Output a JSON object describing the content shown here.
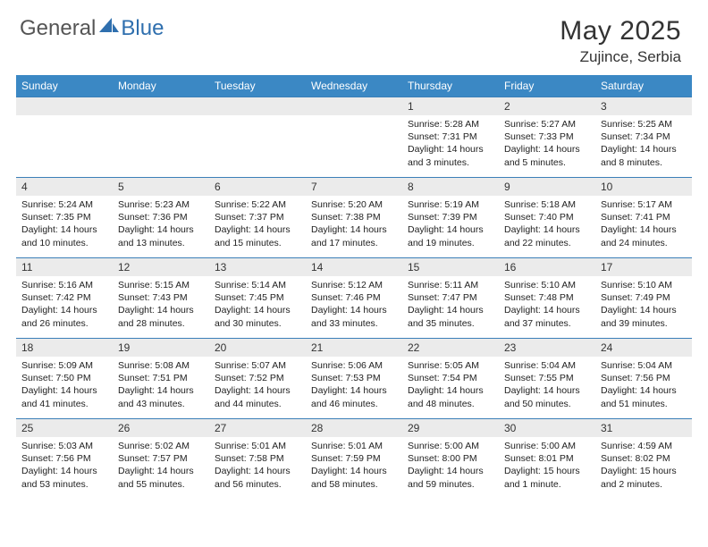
{
  "logo": {
    "general": "General",
    "blue": "Blue"
  },
  "title": "May 2025",
  "location": "Zujince, Serbia",
  "colors": {
    "header_bg": "#3b88c4",
    "band_bg": "#ebebeb",
    "border": "#3b7fb8"
  },
  "day_headers": [
    "Sunday",
    "Monday",
    "Tuesday",
    "Wednesday",
    "Thursday",
    "Friday",
    "Saturday"
  ],
  "weeks": [
    [
      null,
      null,
      null,
      null,
      {
        "n": "1",
        "sr": "Sunrise: 5:28 AM",
        "ss": "Sunset: 7:31 PM",
        "d1": "Daylight: 14 hours",
        "d2": "and 3 minutes."
      },
      {
        "n": "2",
        "sr": "Sunrise: 5:27 AM",
        "ss": "Sunset: 7:33 PM",
        "d1": "Daylight: 14 hours",
        "d2": "and 5 minutes."
      },
      {
        "n": "3",
        "sr": "Sunrise: 5:25 AM",
        "ss": "Sunset: 7:34 PM",
        "d1": "Daylight: 14 hours",
        "d2": "and 8 minutes."
      }
    ],
    [
      {
        "n": "4",
        "sr": "Sunrise: 5:24 AM",
        "ss": "Sunset: 7:35 PM",
        "d1": "Daylight: 14 hours",
        "d2": "and 10 minutes."
      },
      {
        "n": "5",
        "sr": "Sunrise: 5:23 AM",
        "ss": "Sunset: 7:36 PM",
        "d1": "Daylight: 14 hours",
        "d2": "and 13 minutes."
      },
      {
        "n": "6",
        "sr": "Sunrise: 5:22 AM",
        "ss": "Sunset: 7:37 PM",
        "d1": "Daylight: 14 hours",
        "d2": "and 15 minutes."
      },
      {
        "n": "7",
        "sr": "Sunrise: 5:20 AM",
        "ss": "Sunset: 7:38 PM",
        "d1": "Daylight: 14 hours",
        "d2": "and 17 minutes."
      },
      {
        "n": "8",
        "sr": "Sunrise: 5:19 AM",
        "ss": "Sunset: 7:39 PM",
        "d1": "Daylight: 14 hours",
        "d2": "and 19 minutes."
      },
      {
        "n": "9",
        "sr": "Sunrise: 5:18 AM",
        "ss": "Sunset: 7:40 PM",
        "d1": "Daylight: 14 hours",
        "d2": "and 22 minutes."
      },
      {
        "n": "10",
        "sr": "Sunrise: 5:17 AM",
        "ss": "Sunset: 7:41 PM",
        "d1": "Daylight: 14 hours",
        "d2": "and 24 minutes."
      }
    ],
    [
      {
        "n": "11",
        "sr": "Sunrise: 5:16 AM",
        "ss": "Sunset: 7:42 PM",
        "d1": "Daylight: 14 hours",
        "d2": "and 26 minutes."
      },
      {
        "n": "12",
        "sr": "Sunrise: 5:15 AM",
        "ss": "Sunset: 7:43 PM",
        "d1": "Daylight: 14 hours",
        "d2": "and 28 minutes."
      },
      {
        "n": "13",
        "sr": "Sunrise: 5:14 AM",
        "ss": "Sunset: 7:45 PM",
        "d1": "Daylight: 14 hours",
        "d2": "and 30 minutes."
      },
      {
        "n": "14",
        "sr": "Sunrise: 5:12 AM",
        "ss": "Sunset: 7:46 PM",
        "d1": "Daylight: 14 hours",
        "d2": "and 33 minutes."
      },
      {
        "n": "15",
        "sr": "Sunrise: 5:11 AM",
        "ss": "Sunset: 7:47 PM",
        "d1": "Daylight: 14 hours",
        "d2": "and 35 minutes."
      },
      {
        "n": "16",
        "sr": "Sunrise: 5:10 AM",
        "ss": "Sunset: 7:48 PM",
        "d1": "Daylight: 14 hours",
        "d2": "and 37 minutes."
      },
      {
        "n": "17",
        "sr": "Sunrise: 5:10 AM",
        "ss": "Sunset: 7:49 PM",
        "d1": "Daylight: 14 hours",
        "d2": "and 39 minutes."
      }
    ],
    [
      {
        "n": "18",
        "sr": "Sunrise: 5:09 AM",
        "ss": "Sunset: 7:50 PM",
        "d1": "Daylight: 14 hours",
        "d2": "and 41 minutes."
      },
      {
        "n": "19",
        "sr": "Sunrise: 5:08 AM",
        "ss": "Sunset: 7:51 PM",
        "d1": "Daylight: 14 hours",
        "d2": "and 43 minutes."
      },
      {
        "n": "20",
        "sr": "Sunrise: 5:07 AM",
        "ss": "Sunset: 7:52 PM",
        "d1": "Daylight: 14 hours",
        "d2": "and 44 minutes."
      },
      {
        "n": "21",
        "sr": "Sunrise: 5:06 AM",
        "ss": "Sunset: 7:53 PM",
        "d1": "Daylight: 14 hours",
        "d2": "and 46 minutes."
      },
      {
        "n": "22",
        "sr": "Sunrise: 5:05 AM",
        "ss": "Sunset: 7:54 PM",
        "d1": "Daylight: 14 hours",
        "d2": "and 48 minutes."
      },
      {
        "n": "23",
        "sr": "Sunrise: 5:04 AM",
        "ss": "Sunset: 7:55 PM",
        "d1": "Daylight: 14 hours",
        "d2": "and 50 minutes."
      },
      {
        "n": "24",
        "sr": "Sunrise: 5:04 AM",
        "ss": "Sunset: 7:56 PM",
        "d1": "Daylight: 14 hours",
        "d2": "and 51 minutes."
      }
    ],
    [
      {
        "n": "25",
        "sr": "Sunrise: 5:03 AM",
        "ss": "Sunset: 7:56 PM",
        "d1": "Daylight: 14 hours",
        "d2": "and 53 minutes."
      },
      {
        "n": "26",
        "sr": "Sunrise: 5:02 AM",
        "ss": "Sunset: 7:57 PM",
        "d1": "Daylight: 14 hours",
        "d2": "and 55 minutes."
      },
      {
        "n": "27",
        "sr": "Sunrise: 5:01 AM",
        "ss": "Sunset: 7:58 PM",
        "d1": "Daylight: 14 hours",
        "d2": "and 56 minutes."
      },
      {
        "n": "28",
        "sr": "Sunrise: 5:01 AM",
        "ss": "Sunset: 7:59 PM",
        "d1": "Daylight: 14 hours",
        "d2": "and 58 minutes."
      },
      {
        "n": "29",
        "sr": "Sunrise: 5:00 AM",
        "ss": "Sunset: 8:00 PM",
        "d1": "Daylight: 14 hours",
        "d2": "and 59 minutes."
      },
      {
        "n": "30",
        "sr": "Sunrise: 5:00 AM",
        "ss": "Sunset: 8:01 PM",
        "d1": "Daylight: 15 hours",
        "d2": "and 1 minute."
      },
      {
        "n": "31",
        "sr": "Sunrise: 4:59 AM",
        "ss": "Sunset: 8:02 PM",
        "d1": "Daylight: 15 hours",
        "d2": "and 2 minutes."
      }
    ]
  ]
}
